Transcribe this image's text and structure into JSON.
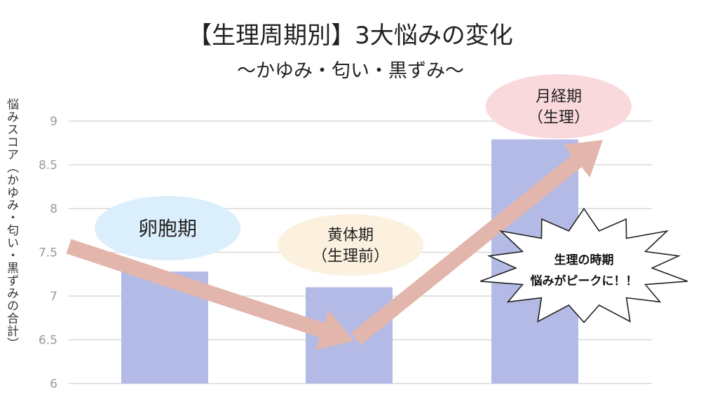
{
  "chart_data": {
    "type": "bar",
    "title": "【生理周期別】3大悩みの変化",
    "subtitle": "～かゆみ・匂い・黒ずみ～",
    "ylabel": "悩みスコア（かゆみ・匂い・黒ずみの合計）",
    "xlabel": "",
    "ylim": [
      6,
      9
    ],
    "yticks": [
      "6",
      "6.5",
      "7",
      "7.5",
      "8",
      "8.5",
      "9"
    ],
    "grid": true,
    "categories": [
      "卵胞期",
      "黄体期（生理前）",
      "月経期（生理）"
    ],
    "values": [
      7.28,
      7.1,
      8.79
    ],
    "category_labels": [
      {
        "lines": [
          "卵胞期"
        ],
        "color": "#dbeefb"
      },
      {
        "lines": [
          "黄体期",
          "（生理前）"
        ],
        "color": "#fbf1de"
      },
      {
        "lines": [
          "月経期",
          "（生理）"
        ],
        "color": "#fad9dc"
      }
    ],
    "annotation": {
      "lines": [
        "生理の時期",
        "悩みがピークに！！"
      ]
    },
    "colors": {
      "bar": "#b4bae6",
      "arrow": "#e2b6ac",
      "grid": "#d9d9d9",
      "tick": "#999999"
    }
  }
}
